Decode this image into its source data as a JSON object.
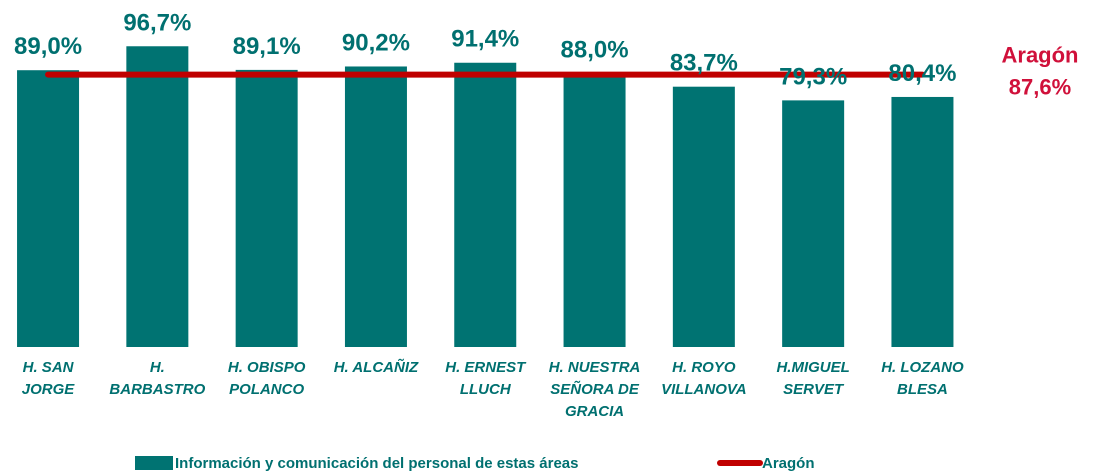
{
  "chart_data": {
    "type": "bar",
    "categories": [
      "H. SAN JORGE",
      "H. BARBASTRO",
      "H. OBISPO POLANCO",
      "H. ALCAÑIZ",
      "H. ERNEST LLUCH",
      "H. NUESTRA SEÑORA DE GRACIA",
      "H. ROYO VILLANOVA",
      "H.MIGUEL SERVET",
      "H. LOZANO BLESA"
    ],
    "series": [
      {
        "name": "Información y comunicación del personal de estas áreas",
        "color": "#007372",
        "values": [
          89.0,
          96.7,
          89.1,
          90.2,
          91.4,
          88.0,
          83.7,
          79.3,
          80.4
        ],
        "value_labels": [
          "89,0%",
          "96,7%",
          "89,1%",
          "90,2%",
          "91,4%",
          "88,0%",
          "83,7%",
          "79,3%",
          "80,4%"
        ]
      },
      {
        "name": "Aragón",
        "type": "line",
        "color": "#c00000",
        "value": 87.6,
        "value_label": "87,6%"
      }
    ],
    "ylim": [
      0,
      100
    ]
  }
}
